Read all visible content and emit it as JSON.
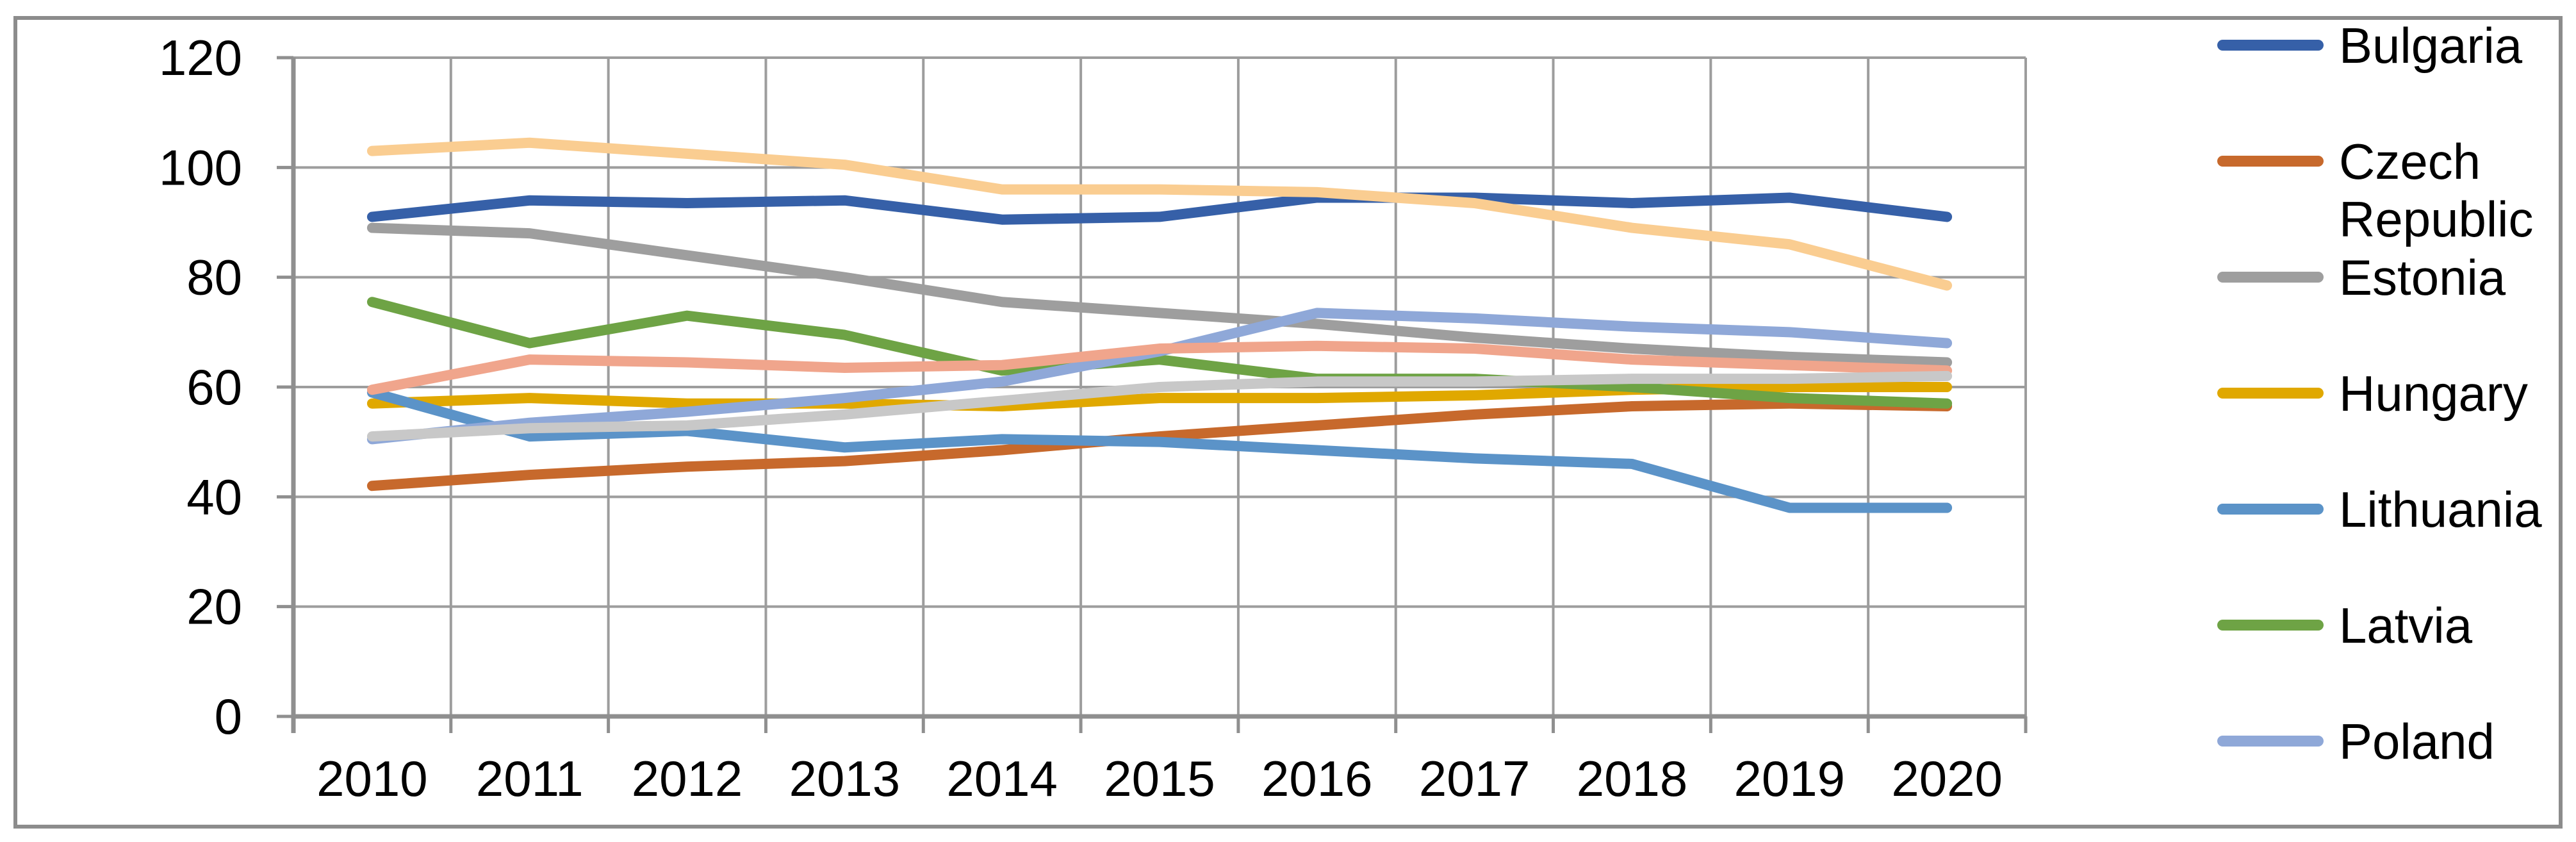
{
  "chart_data": {
    "type": "line",
    "title": "",
    "x_labels": [
      "2010",
      "2011",
      "2012",
      "2013",
      "2014",
      "2015",
      "2016",
      "2017",
      "2018",
      "2019",
      "2020"
    ],
    "y_ticks": [
      "0",
      "20",
      "40",
      "60",
      "80",
      "100",
      "120"
    ],
    "ylim": [
      0,
      120
    ],
    "y_tick_step": 20,
    "grid": true,
    "legend_position": "right",
    "series": [
      {
        "id": "bulgaria",
        "label": "Bulgaria",
        "color": "#3660A8",
        "in_legend": true,
        "values": [
          91,
          94,
          93.5,
          94,
          90.5,
          91,
          94.5,
          94.5,
          93.5,
          94.5,
          91
        ]
      },
      {
        "id": "czech-republic",
        "label": "Czech Republic",
        "color": "#C7692C",
        "in_legend": true,
        "values": [
          42,
          44,
          45.5,
          46.5,
          48.5,
          51,
          53,
          55,
          56.5,
          57,
          56.5
        ]
      },
      {
        "id": "estonia",
        "label": "Estonia",
        "color": "#9E9E9E",
        "in_legend": true,
        "values": [
          89,
          88,
          84,
          80,
          75.5,
          73.5,
          71.5,
          69,
          67,
          65.5,
          64.5
        ]
      },
      {
        "id": "hungary",
        "label": "Hungary",
        "color": "#E0A800",
        "in_legend": true,
        "values": [
          57,
          58,
          57,
          57,
          56.5,
          58,
          58,
          58.5,
          59.5,
          60,
          60
        ]
      },
      {
        "id": "lithuania",
        "label": "Lithuania",
        "color": "#5B93C8",
        "in_legend": true,
        "values": [
          59,
          51,
          52,
          49,
          50.5,
          50,
          48.5,
          47,
          46,
          38,
          38
        ]
      },
      {
        "id": "latvia",
        "label": "Latvia",
        "color": "#6EA345",
        "in_legend": true,
        "values": [
          75.5,
          68,
          73,
          69.5,
          63,
          65,
          61.5,
          61.5,
          60,
          58,
          57
        ]
      },
      {
        "id": "poland",
        "label": "Poland",
        "color": "#8FA8D8",
        "in_legend": true,
        "values": [
          50.5,
          53.5,
          55.5,
          58,
          61,
          66.5,
          73.5,
          72.5,
          71,
          70,
          68
        ]
      },
      {
        "id": "unlabeled-light-orange",
        "label": "",
        "color": "#FACD91",
        "in_legend": false,
        "values": [
          103,
          104.5,
          102.5,
          100.5,
          96,
          96,
          95.5,
          93.5,
          89,
          86,
          78.5
        ]
      },
      {
        "id": "unlabeled-salmon",
        "label": "",
        "color": "#F0A58C",
        "in_legend": false,
        "values": [
          59.5,
          65,
          64.5,
          63.5,
          64,
          67,
          67.5,
          67,
          65,
          64,
          63
        ]
      },
      {
        "id": "unlabeled-silver",
        "label": "",
        "color": "#C8C8C8",
        "in_legend": false,
        "values": [
          51,
          52.5,
          53,
          55,
          57.5,
          60,
          61,
          61,
          61.5,
          61.5,
          62
        ]
      }
    ],
    "colors": {
      "gridline": "#9D9D9D",
      "axis": "#8F8F8F",
      "text": "#000000",
      "frame_border": "#8C8C8C",
      "background": "#FFFFFF"
    }
  }
}
